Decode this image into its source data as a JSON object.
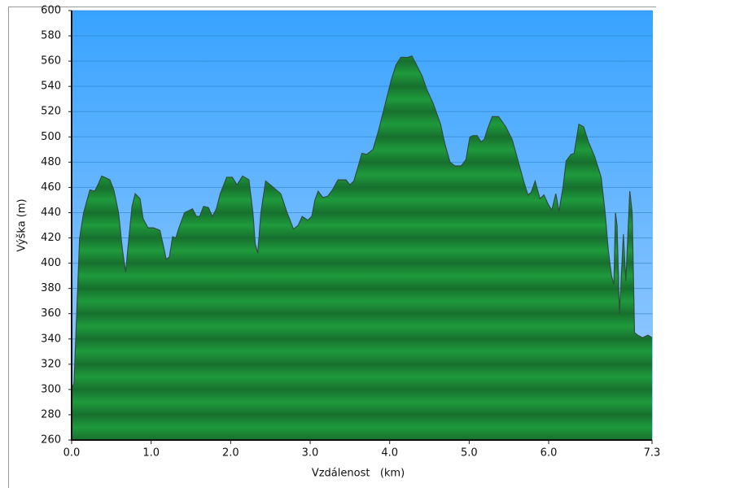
{
  "chart_data": {
    "type": "area",
    "xlabel": "Vzdálenost   (km)",
    "ylabel": "Výška (m)",
    "x": [
      0.0,
      0.03,
      0.07,
      0.1,
      0.15,
      0.23,
      0.29,
      0.33,
      0.38,
      0.48,
      0.53,
      0.59,
      0.64,
      0.68,
      0.72,
      0.76,
      0.8,
      0.86,
      0.9,
      0.96,
      1.03,
      1.11,
      1.15,
      1.19,
      1.23,
      1.27,
      1.31,
      1.35,
      1.42,
      1.52,
      1.57,
      1.61,
      1.66,
      1.72,
      1.77,
      1.82,
      1.87,
      1.95,
      2.02,
      2.08,
      2.15,
      2.23,
      2.28,
      2.31,
      2.34,
      2.38,
      2.44,
      2.5,
      2.63,
      2.71,
      2.79,
      2.85,
      2.9,
      2.97,
      3.02,
      3.06,
      3.1,
      3.16,
      3.22,
      3.28,
      3.35,
      3.45,
      3.5,
      3.55,
      3.61,
      3.65,
      3.71,
      3.79,
      3.86,
      3.94,
      4.02,
      4.08,
      4.14,
      4.23,
      4.28,
      4.33,
      4.41,
      4.47,
      4.55,
      4.64,
      4.7,
      4.76,
      4.82,
      4.9,
      4.96,
      5.01,
      5.05,
      5.1,
      5.15,
      5.19,
      5.23,
      5.29,
      5.37,
      5.46,
      5.54,
      5.62,
      5.69,
      5.74,
      5.78,
      5.83,
      5.89,
      5.94,
      5.99,
      6.04,
      6.09,
      6.13,
      6.18,
      6.22,
      6.28,
      6.32,
      6.38,
      6.44,
      6.5,
      6.58,
      6.66,
      6.71,
      6.75,
      6.79,
      6.82,
      6.84,
      6.86,
      6.89,
      6.92,
      6.94,
      6.97,
      7.02,
      7.05,
      7.08,
      7.12,
      7.18,
      7.25,
      7.3
    ],
    "values": [
      300,
      305,
      370,
      420,
      440,
      458,
      457,
      462,
      469,
      466,
      458,
      440,
      410,
      393,
      420,
      445,
      455,
      451,
      435,
      428,
      428,
      426,
      415,
      403,
      405,
      421,
      420,
      428,
      440,
      443,
      437,
      437,
      445,
      444,
      437,
      443,
      455,
      468,
      468,
      462,
      469,
      466,
      440,
      415,
      408,
      440,
      465,
      462,
      455,
      440,
      427,
      430,
      437,
      434,
      437,
      450,
      457,
      452,
      453,
      458,
      466,
      466,
      462,
      465,
      478,
      487,
      486,
      490,
      505,
      525,
      545,
      557,
      563,
      563,
      564,
      558,
      548,
      537,
      526,
      510,
      493,
      480,
      477,
      477,
      482,
      500,
      501,
      501,
      496,
      498,
      506,
      516,
      516,
      508,
      498,
      480,
      464,
      454,
      456,
      465,
      451,
      454,
      447,
      442,
      455,
      441,
      460,
      481,
      486,
      487,
      510,
      508,
      496,
      484,
      468,
      440,
      410,
      390,
      383,
      440,
      430,
      360,
      398,
      423,
      386,
      457,
      440,
      345,
      343,
      341,
      343,
      341
    ],
    "color": "#1f9a3c",
    "line_color": "#2f4f3f",
    "xlim": [
      0,
      7.3
    ],
    "xticks": [
      {
        "value": 0,
        "label": "0.0"
      },
      {
        "value": 1,
        "label": "1.0"
      },
      {
        "value": 2,
        "label": "2.0"
      },
      {
        "value": 3,
        "label": "3.0"
      },
      {
        "value": 4,
        "label": "4.0"
      },
      {
        "value": 5,
        "label": "5.0"
      },
      {
        "value": 6,
        "label": "6.0"
      },
      {
        "value": 7.3,
        "label": "7.3"
      }
    ],
    "ylim": [
      260,
      600
    ],
    "yticks": [
      260,
      280,
      300,
      320,
      340,
      360,
      380,
      400,
      420,
      440,
      460,
      480,
      500,
      520,
      540,
      560,
      580,
      600
    ],
    "grid": true
  }
}
